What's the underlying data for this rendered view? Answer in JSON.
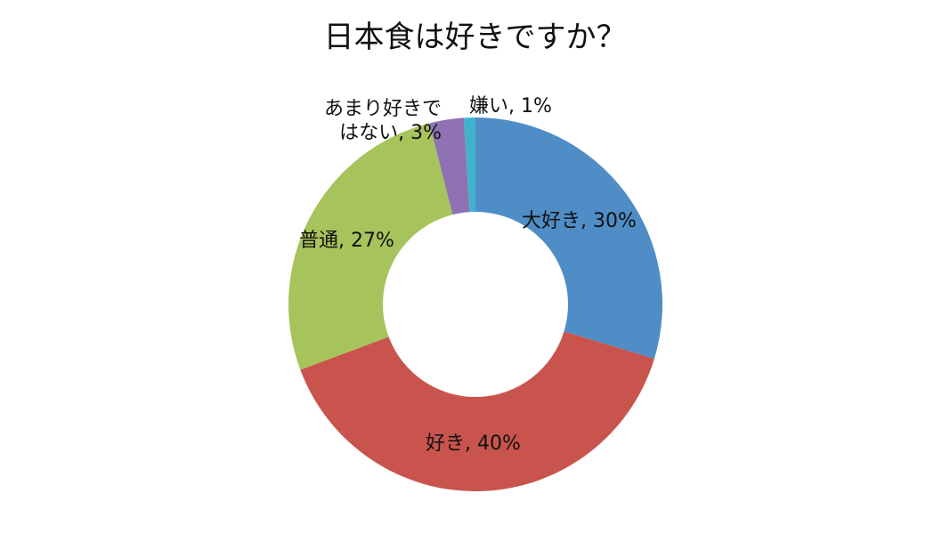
{
  "chart_data": {
    "type": "donut",
    "title": "日本食は好きですか？",
    "legend": "none",
    "slices": [
      {
        "name": "大好き",
        "value": 30,
        "color": "#4F8DC6",
        "label_lines": [
          "大好き, 30%"
        ]
      },
      {
        "name": "好き",
        "value": 40,
        "color": "#C9544E",
        "label_lines": [
          "好き, 40%"
        ]
      },
      {
        "name": "普通",
        "value": 27,
        "color": "#A7C35C",
        "label_lines": [
          "普通, 27%"
        ]
      },
      {
        "name": "あまり好きではない",
        "value": 3,
        "color": "#8F72B3",
        "label_lines": [
          "あまり好きで",
          "はない, 3%"
        ]
      },
      {
        "name": "嫌い",
        "value": 1,
        "color": "#3FB3CB",
        "label_lines": [
          "嫌い, 1%"
        ]
      }
    ]
  }
}
